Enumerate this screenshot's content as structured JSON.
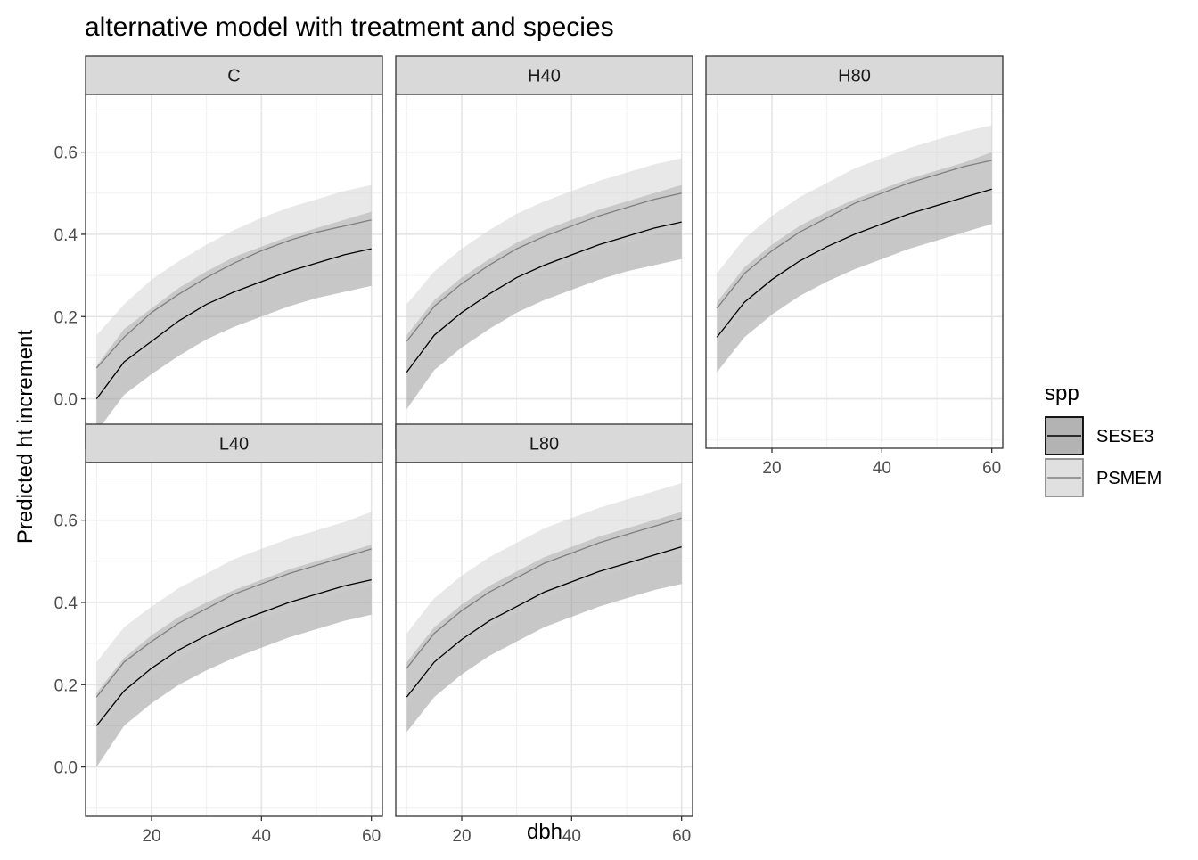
{
  "chart_data": {
    "type": "line",
    "title": "alternative model with treatment and species",
    "xlabel": "dbh",
    "ylabel": "Predicted ht increment",
    "x_ticks": [
      20,
      40,
      60
    ],
    "y_ticks": [
      0.0,
      0.2,
      0.4,
      0.6
    ],
    "y_tick_labels": [
      "0.0",
      "0.2",
      "0.4",
      "0.6"
    ],
    "xlim": [
      8,
      62
    ],
    "ylim": [
      -0.12,
      0.74
    ],
    "grid": true,
    "legend": {
      "title": "spp",
      "position": "right",
      "entries": [
        {
          "label": "SESE3",
          "line_color": "#000000",
          "fill": "#b3b3b3",
          "border": "#000000"
        },
        {
          "label": "PSMEM",
          "line_color": "#7f7f7f",
          "fill": "#e0e0e0",
          "border": "#8c8c8c"
        }
      ]
    },
    "x": [
      10,
      15,
      20,
      25,
      30,
      35,
      40,
      45,
      50,
      55,
      60
    ],
    "panels": [
      {
        "label": "C",
        "series": [
          {
            "name": "SESE3",
            "values": [
              0.0,
              0.09,
              0.14,
              0.19,
              0.23,
              0.26,
              0.285,
              0.31,
              0.33,
              0.35,
              0.365
            ],
            "lower": [
              -0.08,
              0.01,
              0.06,
              0.105,
              0.145,
              0.175,
              0.2,
              0.225,
              0.245,
              0.26,
              0.275
            ],
            "upper": [
              0.08,
              0.17,
              0.22,
              0.27,
              0.31,
              0.345,
              0.37,
              0.395,
              0.415,
              0.435,
              0.455
            ]
          },
          {
            "name": "PSMEM",
            "values": [
              0.075,
              0.15,
              0.21,
              0.255,
              0.295,
              0.33,
              0.36,
              0.385,
              0.405,
              0.42,
              0.435
            ],
            "lower": [
              -0.005,
              0.07,
              0.13,
              0.175,
              0.215,
              0.25,
              0.275,
              0.3,
              0.32,
              0.335,
              0.35
            ],
            "upper": [
              0.155,
              0.23,
              0.29,
              0.335,
              0.375,
              0.41,
              0.44,
              0.465,
              0.485,
              0.505,
              0.52
            ]
          }
        ]
      },
      {
        "label": "H40",
        "series": [
          {
            "name": "SESE3",
            "values": [
              0.065,
              0.155,
              0.21,
              0.255,
              0.295,
              0.325,
              0.35,
              0.375,
              0.395,
              0.415,
              0.43
            ],
            "lower": [
              -0.025,
              0.07,
              0.125,
              0.17,
              0.21,
              0.24,
              0.265,
              0.29,
              0.31,
              0.325,
              0.34
            ],
            "upper": [
              0.155,
              0.24,
              0.295,
              0.34,
              0.38,
              0.41,
              0.435,
              0.46,
              0.48,
              0.5,
              0.52
            ]
          },
          {
            "name": "PSMEM",
            "values": [
              0.14,
              0.225,
              0.28,
              0.325,
              0.365,
              0.395,
              0.42,
              0.445,
              0.465,
              0.485,
              0.5
            ],
            "lower": [
              0.05,
              0.14,
              0.195,
              0.24,
              0.28,
              0.31,
              0.335,
              0.36,
              0.38,
              0.4,
              0.415
            ],
            "upper": [
              0.23,
              0.31,
              0.365,
              0.41,
              0.45,
              0.48,
              0.505,
              0.53,
              0.55,
              0.57,
              0.585
            ]
          }
        ]
      },
      {
        "label": "H80",
        "series": [
          {
            "name": "SESE3",
            "values": [
              0.15,
              0.235,
              0.29,
              0.335,
              0.37,
              0.4,
              0.425,
              0.45,
              0.47,
              0.49,
              0.51
            ],
            "lower": [
              0.065,
              0.15,
              0.205,
              0.25,
              0.285,
              0.315,
              0.34,
              0.365,
              0.385,
              0.405,
              0.425
            ],
            "upper": [
              0.235,
              0.32,
              0.375,
              0.42,
              0.455,
              0.485,
              0.51,
              0.535,
              0.555,
              0.575,
              0.6
            ]
          },
          {
            "name": "PSMEM",
            "values": [
              0.22,
              0.305,
              0.36,
              0.405,
              0.44,
              0.475,
              0.5,
              0.525,
              0.545,
              0.565,
              0.58
            ],
            "lower": [
              0.135,
              0.22,
              0.275,
              0.32,
              0.355,
              0.39,
              0.415,
              0.44,
              0.46,
              0.48,
              0.495
            ],
            "upper": [
              0.305,
              0.39,
              0.445,
              0.49,
              0.525,
              0.56,
              0.585,
              0.61,
              0.63,
              0.65,
              0.665
            ]
          }
        ]
      },
      {
        "label": "L40",
        "series": [
          {
            "name": "SESE3",
            "values": [
              0.1,
              0.185,
              0.24,
              0.285,
              0.32,
              0.35,
              0.375,
              0.4,
              0.42,
              0.44,
              0.455
            ],
            "lower": [
              0.0,
              0.1,
              0.155,
              0.2,
              0.235,
              0.265,
              0.29,
              0.315,
              0.335,
              0.355,
              0.37
            ],
            "upper": [
              0.18,
              0.265,
              0.32,
              0.365,
              0.4,
              0.43,
              0.455,
              0.48,
              0.5,
              0.52,
              0.54
            ]
          },
          {
            "name": "PSMEM",
            "values": [
              0.17,
              0.255,
              0.305,
              0.35,
              0.385,
              0.42,
              0.445,
              0.47,
              0.49,
              0.51,
              0.53
            ],
            "lower": [
              0.085,
              0.17,
              0.22,
              0.265,
              0.3,
              0.335,
              0.36,
              0.385,
              0.405,
              0.425,
              0.44
            ],
            "upper": [
              0.255,
              0.34,
              0.39,
              0.435,
              0.47,
              0.505,
              0.53,
              0.555,
              0.575,
              0.595,
              0.62
            ]
          }
        ]
      },
      {
        "label": "L80",
        "series": [
          {
            "name": "SESE3",
            "values": [
              0.17,
              0.255,
              0.31,
              0.355,
              0.39,
              0.425,
              0.45,
              0.475,
              0.495,
              0.515,
              0.535
            ],
            "lower": [
              0.085,
              0.17,
              0.225,
              0.27,
              0.305,
              0.34,
              0.365,
              0.39,
              0.41,
              0.43,
              0.445
            ],
            "upper": [
              0.255,
              0.34,
              0.395,
              0.44,
              0.475,
              0.51,
              0.535,
              0.56,
              0.58,
              0.6,
              0.62
            ]
          },
          {
            "name": "PSMEM",
            "values": [
              0.24,
              0.325,
              0.38,
              0.425,
              0.46,
              0.495,
              0.52,
              0.545,
              0.565,
              0.585,
              0.605
            ],
            "lower": [
              0.155,
              0.24,
              0.295,
              0.34,
              0.375,
              0.41,
              0.435,
              0.46,
              0.48,
              0.5,
              0.52
            ],
            "upper": [
              0.325,
              0.41,
              0.465,
              0.51,
              0.545,
              0.58,
              0.605,
              0.63,
              0.65,
              0.67,
              0.69
            ]
          }
        ]
      }
    ]
  }
}
